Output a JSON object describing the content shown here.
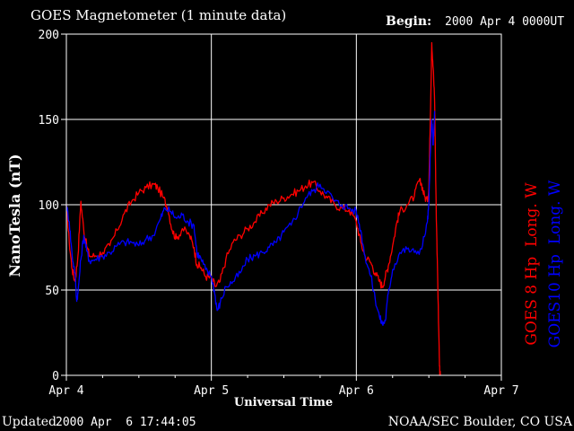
{
  "header": {
    "title": "GOES Magnetometer (1 minute data)",
    "begin_label": "Begin:",
    "begin_value": "2000 Apr 4 0000UT"
  },
  "footer": {
    "updated_label": "Updated",
    "updated_value": "2000 Apr  6 17:44:05",
    "credit": "NOAA/SEC Boulder, CO USA"
  },
  "colors": {
    "background": "#000000",
    "frame": "#ffffff",
    "grid": "#ffffff",
    "goes8": "#ff0000",
    "goes10": "#0000ff"
  },
  "chart_data": {
    "type": "line",
    "title": "GOES Magnetometer (1 minute data)",
    "xlabel": "Universal Time",
    "ylabel": "NanoTesla (nT)",
    "x_unit": "days since 2000 Apr 4 0000UT",
    "xlim": [
      0,
      3
    ],
    "ylim": [
      0,
      200
    ],
    "xticks": [
      {
        "value": 0,
        "label": "Apr 4"
      },
      {
        "value": 1,
        "label": "Apr 5"
      },
      {
        "value": 2,
        "label": "Apr 6"
      },
      {
        "value": 3,
        "label": "Apr 7"
      }
    ],
    "yticks": [
      {
        "value": 0,
        "label": "0"
      },
      {
        "value": 50,
        "label": "50"
      },
      {
        "value": 100,
        "label": "100"
      },
      {
        "value": 150,
        "label": "150"
      },
      {
        "value": 200,
        "label": "200"
      }
    ],
    "grid": true,
    "legend_position": "right (vertical)",
    "series": [
      {
        "name": "GOES 8 Hp  Long. W",
        "color": "#ff0000",
        "points": [
          [
            0.0,
            100
          ],
          [
            0.02,
            78
          ],
          [
            0.04,
            62
          ],
          [
            0.06,
            55
          ],
          [
            0.08,
            70
          ],
          [
            0.1,
            102
          ],
          [
            0.12,
            85
          ],
          [
            0.14,
            76
          ],
          [
            0.16,
            70
          ],
          [
            0.2,
            70
          ],
          [
            0.25,
            72
          ],
          [
            0.3,
            76
          ],
          [
            0.35,
            85
          ],
          [
            0.4,
            95
          ],
          [
            0.45,
            102
          ],
          [
            0.5,
            107
          ],
          [
            0.55,
            110
          ],
          [
            0.6,
            112
          ],
          [
            0.63,
            110
          ],
          [
            0.67,
            104
          ],
          [
            0.7,
            98
          ],
          [
            0.73,
            85
          ],
          [
            0.76,
            80
          ],
          [
            0.8,
            86
          ],
          [
            0.85,
            82
          ],
          [
            0.88,
            75
          ],
          [
            0.9,
            65
          ],
          [
            0.93,
            63
          ],
          [
            0.96,
            58
          ],
          [
            1.0,
            57
          ],
          [
            1.03,
            52
          ],
          [
            1.06,
            55
          ],
          [
            1.1,
            68
          ],
          [
            1.15,
            78
          ],
          [
            1.2,
            82
          ],
          [
            1.25,
            86
          ],
          [
            1.3,
            90
          ],
          [
            1.35,
            95
          ],
          [
            1.4,
            100
          ],
          [
            1.45,
            102
          ],
          [
            1.5,
            104
          ],
          [
            1.55,
            106
          ],
          [
            1.6,
            108
          ],
          [
            1.65,
            111
          ],
          [
            1.7,
            113
          ],
          [
            1.75,
            108
          ],
          [
            1.8,
            104
          ],
          [
            1.85,
            100
          ],
          [
            1.9,
            98
          ],
          [
            1.95,
            97
          ],
          [
            2.0,
            90
          ],
          [
            2.03,
            78
          ],
          [
            2.06,
            70
          ],
          [
            2.1,
            66
          ],
          [
            2.13,
            60
          ],
          [
            2.16,
            55
          ],
          [
            2.18,
            52
          ],
          [
            2.2,
            58
          ],
          [
            2.22,
            64
          ],
          [
            2.25,
            76
          ],
          [
            2.28,
            90
          ],
          [
            2.3,
            96
          ],
          [
            2.35,
            100
          ],
          [
            2.4,
            105
          ],
          [
            2.43,
            114
          ],
          [
            2.45,
            112
          ],
          [
            2.47,
            105
          ],
          [
            2.49,
            102
          ],
          [
            2.5,
            110
          ],
          [
            2.51,
            150
          ],
          [
            2.52,
            195
          ],
          [
            2.53,
            180
          ],
          [
            2.54,
            160
          ],
          [
            2.545,
            130
          ],
          [
            2.55,
            100
          ],
          [
            2.56,
            60
          ],
          [
            2.57,
            20
          ],
          [
            2.575,
            0
          ],
          [
            2.58,
            0
          ]
        ]
      },
      {
        "name": "GOES10 Hp  Long. W",
        "color": "#0000ff",
        "points": [
          [
            0.0,
            100
          ],
          [
            0.02,
            90
          ],
          [
            0.04,
            70
          ],
          [
            0.06,
            60
          ],
          [
            0.07,
            45
          ],
          [
            0.08,
            48
          ],
          [
            0.1,
            68
          ],
          [
            0.12,
            82
          ],
          [
            0.14,
            73
          ],
          [
            0.16,
            67
          ],
          [
            0.2,
            68
          ],
          [
            0.25,
            70
          ],
          [
            0.3,
            72
          ],
          [
            0.35,
            76
          ],
          [
            0.4,
            78
          ],
          [
            0.45,
            78
          ],
          [
            0.5,
            76
          ],
          [
            0.55,
            80
          ],
          [
            0.6,
            82
          ],
          [
            0.65,
            92
          ],
          [
            0.68,
            98
          ],
          [
            0.72,
            96
          ],
          [
            0.76,
            92
          ],
          [
            0.8,
            94
          ],
          [
            0.84,
            90
          ],
          [
            0.88,
            88
          ],
          [
            0.9,
            72
          ],
          [
            0.93,
            68
          ],
          [
            0.96,
            62
          ],
          [
            1.0,
            58
          ],
          [
            1.02,
            50
          ],
          [
            1.04,
            38
          ],
          [
            1.06,
            42
          ],
          [
            1.1,
            52
          ],
          [
            1.15,
            55
          ],
          [
            1.2,
            60
          ],
          [
            1.25,
            68
          ],
          [
            1.3,
            70
          ],
          [
            1.35,
            72
          ],
          [
            1.4,
            75
          ],
          [
            1.45,
            78
          ],
          [
            1.5,
            84
          ],
          [
            1.55,
            88
          ],
          [
            1.6,
            96
          ],
          [
            1.65,
            104
          ],
          [
            1.7,
            108
          ],
          [
            1.75,
            112
          ],
          [
            1.8,
            108
          ],
          [
            1.85,
            102
          ],
          [
            1.9,
            100
          ],
          [
            1.95,
            98
          ],
          [
            2.0,
            96
          ],
          [
            2.03,
            85
          ],
          [
            2.06,
            70
          ],
          [
            2.1,
            58
          ],
          [
            2.13,
            45
          ],
          [
            2.16,
            34
          ],
          [
            2.18,
            30
          ],
          [
            2.2,
            32
          ],
          [
            2.22,
            48
          ],
          [
            2.25,
            62
          ],
          [
            2.3,
            72
          ],
          [
            2.35,
            74
          ],
          [
            2.4,
            72
          ],
          [
            2.45,
            74
          ],
          [
            2.49,
            90
          ],
          [
            2.5,
            100
          ],
          [
            2.51,
            130
          ],
          [
            2.52,
            150
          ],
          [
            2.53,
            135
          ],
          [
            2.54,
            155
          ]
        ]
      }
    ]
  }
}
